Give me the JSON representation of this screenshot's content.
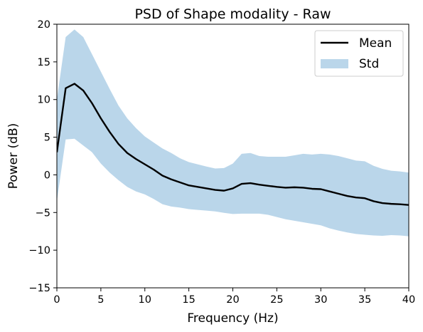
{
  "chart_data": {
    "type": "line",
    "title": "PSD of Shape modality - Raw",
    "xlabel": "Frequency (Hz)",
    "ylabel": "Power (dB)",
    "xlim": [
      0,
      40
    ],
    "ylim": [
      -15,
      20
    ],
    "xticks": [
      0,
      5,
      10,
      15,
      20,
      25,
      30,
      35,
      40
    ],
    "yticks": [
      -15,
      -10,
      -5,
      0,
      5,
      10,
      15,
      20
    ],
    "grid": false,
    "legend_position": "upper right",
    "x": [
      0,
      1,
      2,
      3,
      4,
      5,
      6,
      7,
      8,
      9,
      10,
      11,
      12,
      13,
      14,
      15,
      16,
      17,
      18,
      19,
      20,
      21,
      22,
      23,
      24,
      25,
      26,
      27,
      28,
      29,
      30,
      31,
      32,
      33,
      34,
      35,
      36,
      37,
      38,
      39,
      40
    ],
    "series": [
      {
        "name": "Mean",
        "kind": "line",
        "color": "#000000",
        "values": [
          3.0,
          11.5,
          12.1,
          11.2,
          9.5,
          7.5,
          5.7,
          4.1,
          2.9,
          2.1,
          1.4,
          0.7,
          -0.1,
          -0.6,
          -1.0,
          -1.4,
          -1.6,
          -1.8,
          -2.0,
          -2.1,
          -1.8,
          -1.2,
          -1.1,
          -1.3,
          -1.45,
          -1.6,
          -1.7,
          -1.65,
          -1.7,
          -1.85,
          -1.9,
          -2.2,
          -2.5,
          -2.8,
          -3.0,
          -3.1,
          -3.5,
          -3.75,
          -3.85,
          -3.9,
          -4.0
        ]
      },
      {
        "name": "Std",
        "kind": "band",
        "color": "#bad6ea",
        "upper": [
          10.0,
          18.3,
          19.3,
          18.3,
          16.0,
          13.7,
          11.4,
          9.2,
          7.5,
          6.2,
          5.1,
          4.3,
          3.5,
          2.9,
          2.2,
          1.7,
          1.4,
          1.1,
          0.85,
          0.9,
          1.5,
          2.8,
          2.9,
          2.5,
          2.4,
          2.4,
          2.4,
          2.6,
          2.8,
          2.7,
          2.8,
          2.7,
          2.5,
          2.2,
          1.9,
          1.8,
          1.2,
          0.8,
          0.55,
          0.45,
          0.3
        ],
        "lower": [
          -3.5,
          4.7,
          4.8,
          3.9,
          3.0,
          1.5,
          0.3,
          -0.7,
          -1.6,
          -2.2,
          -2.6,
          -3.2,
          -3.9,
          -4.2,
          -4.35,
          -4.55,
          -4.65,
          -4.75,
          -4.85,
          -5.05,
          -5.2,
          -5.15,
          -5.15,
          -5.15,
          -5.3,
          -5.6,
          -5.9,
          -6.1,
          -6.3,
          -6.5,
          -6.7,
          -7.1,
          -7.4,
          -7.65,
          -7.85,
          -7.95,
          -8.05,
          -8.1,
          -8.0,
          -8.05,
          -8.15
        ]
      }
    ],
    "legend": {
      "mean_label": "Mean",
      "std_label": "Std"
    }
  }
}
